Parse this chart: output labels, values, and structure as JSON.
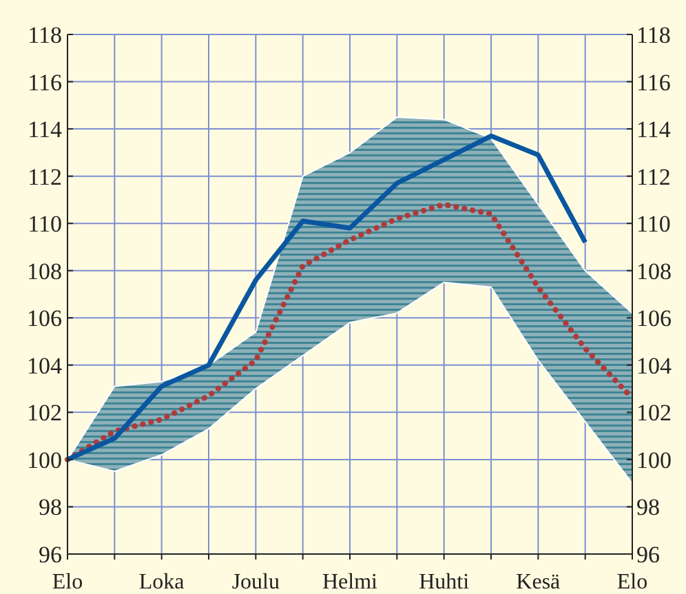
{
  "chart_data": {
    "type": "line",
    "categories": [
      "Elo",
      null,
      "Loka",
      null,
      "Joulu",
      null,
      "Helmi",
      null,
      "Huhti",
      null,
      "Kesä",
      null,
      "Elo"
    ],
    "ylim": [
      96,
      118
    ],
    "yticks": [
      96,
      98,
      100,
      102,
      104,
      106,
      108,
      110,
      112,
      114,
      116,
      118
    ],
    "y2lim": [
      96,
      118
    ],
    "y2ticks": [
      96,
      98,
      100,
      102,
      104,
      106,
      108,
      110,
      112,
      114,
      116,
      118
    ],
    "grid": true,
    "series": [
      {
        "color": "#b03a3a",
        "line_style": "dotted",
        "values": [
          100,
          101.2,
          101.7,
          102.7,
          104.2,
          108.2,
          109.3,
          110.2,
          110.8,
          110.4,
          107.3,
          104.7,
          102.6
        ],
        "lower": [
          100,
          99.5,
          100.2,
          101.3,
          103.0,
          104.4,
          105.8,
          106.2,
          107.5,
          107.3,
          104.2,
          101.6,
          99.0
        ],
        "upper": [
          100,
          103.1,
          103.3,
          104.0,
          105.4,
          112.0,
          113.0,
          114.5,
          114.4,
          113.6,
          110.8,
          108.0,
          106.2
        ]
      },
      {
        "color": "#0a56a0",
        "line_style": "solid",
        "values": [
          100,
          100.9,
          103.1,
          104.0,
          107.6,
          110.1,
          109.8,
          111.7,
          112.7,
          113.7,
          112.9,
          109.2,
          null
        ]
      }
    ]
  }
}
